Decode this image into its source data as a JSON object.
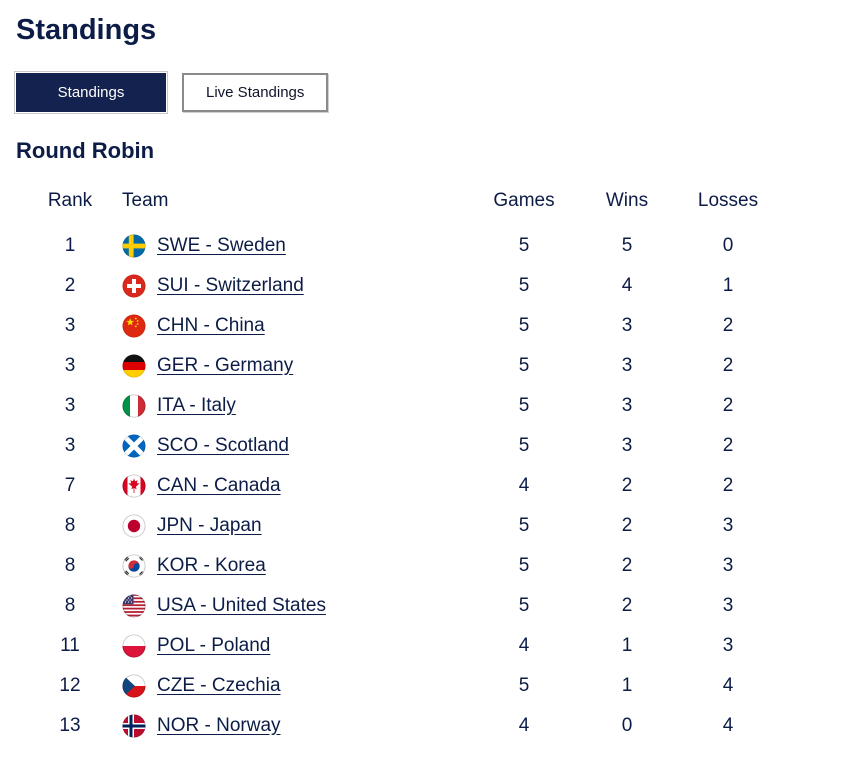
{
  "page": {
    "title": "Standings"
  },
  "tabs": [
    {
      "label": "Standings",
      "active": true
    },
    {
      "label": "Live Standings",
      "active": false
    }
  ],
  "section": {
    "title": "Round Robin"
  },
  "table": {
    "headers": [
      "Rank",
      "Team",
      "Games",
      "Wins",
      "Losses"
    ],
    "rows": [
      {
        "rank": 1,
        "code": "SWE",
        "flag_icon": "swe-flag-icon",
        "team": "SWE - Sweden",
        "games": 5,
        "wins": 5,
        "losses": 0
      },
      {
        "rank": 2,
        "code": "SUI",
        "flag_icon": "sui-flag-icon",
        "team": "SUI - Switzerland",
        "games": 5,
        "wins": 4,
        "losses": 1
      },
      {
        "rank": 3,
        "code": "CHN",
        "flag_icon": "chn-flag-icon",
        "team": "CHN - China",
        "games": 5,
        "wins": 3,
        "losses": 2
      },
      {
        "rank": 3,
        "code": "GER",
        "flag_icon": "ger-flag-icon",
        "team": "GER - Germany",
        "games": 5,
        "wins": 3,
        "losses": 2
      },
      {
        "rank": 3,
        "code": "ITA",
        "flag_icon": "ita-flag-icon",
        "team": "ITA - Italy",
        "games": 5,
        "wins": 3,
        "losses": 2
      },
      {
        "rank": 3,
        "code": "SCO",
        "flag_icon": "sco-flag-icon",
        "team": "SCO - Scotland",
        "games": 5,
        "wins": 3,
        "losses": 2
      },
      {
        "rank": 7,
        "code": "CAN",
        "flag_icon": "can-flag-icon",
        "team": "CAN - Canada",
        "games": 4,
        "wins": 2,
        "losses": 2
      },
      {
        "rank": 8,
        "code": "JPN",
        "flag_icon": "jpn-flag-icon",
        "team": "JPN - Japan",
        "games": 5,
        "wins": 2,
        "losses": 3
      },
      {
        "rank": 8,
        "code": "KOR",
        "flag_icon": "kor-flag-icon",
        "team": "KOR - Korea",
        "games": 5,
        "wins": 2,
        "losses": 3
      },
      {
        "rank": 8,
        "code": "USA",
        "flag_icon": "usa-flag-icon",
        "team": "USA - United States",
        "games": 5,
        "wins": 2,
        "losses": 3
      },
      {
        "rank": 11,
        "code": "POL",
        "flag_icon": "pol-flag-icon",
        "team": "POL - Poland",
        "games": 4,
        "wins": 1,
        "losses": 3
      },
      {
        "rank": 12,
        "code": "CZE",
        "flag_icon": "cze-flag-icon",
        "team": "CZE - Czechia",
        "games": 5,
        "wins": 1,
        "losses": 4
      },
      {
        "rank": 13,
        "code": "NOR",
        "flag_icon": "nor-flag-icon",
        "team": "NOR - Norway",
        "games": 4,
        "wins": 0,
        "losses": 4
      }
    ]
  },
  "colors": {
    "heading": "#0c1c47",
    "active_tab_bg": "#13224e",
    "active_tab_text": "#ffffff",
    "link": "#0c1c47"
  }
}
